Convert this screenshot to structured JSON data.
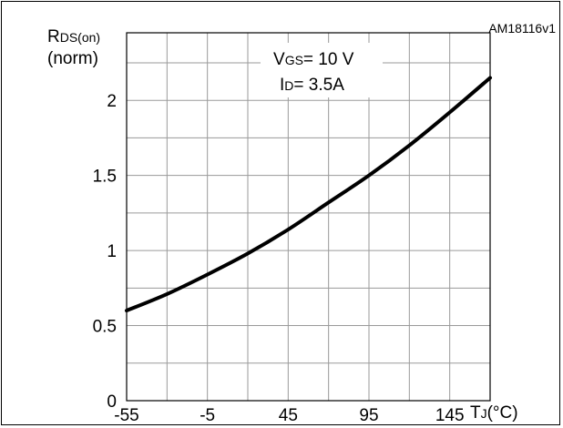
{
  "figure_id": "AM18116v1",
  "chart_data": {
    "type": "line",
    "ylabel_main": "R",
    "ylabel_sub": "DS(on)",
    "ylabel_norm": "(norm)",
    "xlabel_main": "T",
    "xlabel_sub": "J",
    "xlabel_unit": "(°C)",
    "x_ticks": [
      -55,
      -5,
      45,
      95,
      145
    ],
    "y_ticks": [
      {
        "value": 0,
        "label": "0"
      },
      {
        "value": 0.5,
        "label": "0.5"
      },
      {
        "value": 1,
        "label": "1"
      },
      {
        "value": 1.5,
        "label": "1.5"
      },
      {
        "value": 2,
        "label": "2"
      }
    ],
    "xlim": [
      -55,
      170
    ],
    "ylim": [
      0,
      2.45
    ],
    "annotation": {
      "line1_main": "V",
      "line1_sub": "GS",
      "line1_value": "= 10 V",
      "line2_main": "I",
      "line2_sub": "D",
      "line2_value": "= 3.5A"
    },
    "grid": true,
    "series": [
      {
        "x": [
          -55,
          -30,
          -5,
          20,
          45,
          70,
          95,
          120,
          145,
          170
        ],
        "y": [
          0.6,
          0.71,
          0.84,
          0.98,
          1.14,
          1.32,
          1.5,
          1.7,
          1.92,
          2.15
        ]
      }
    ]
  }
}
